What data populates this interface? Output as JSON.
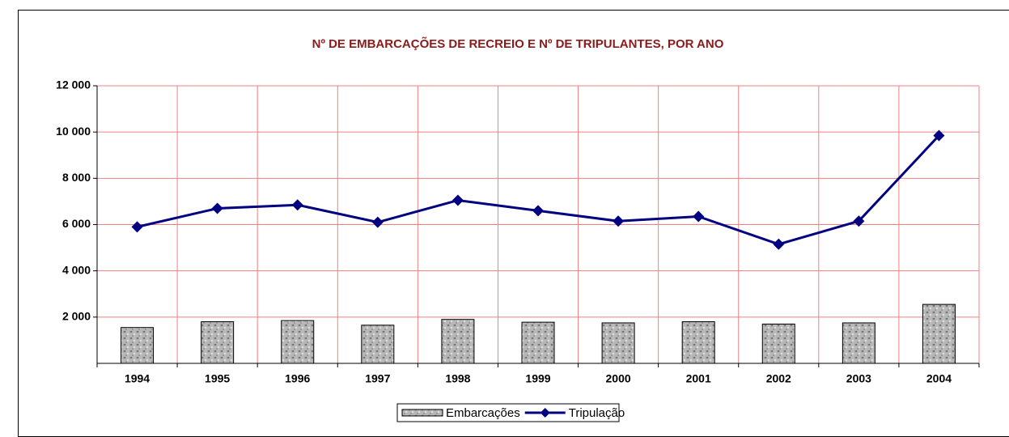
{
  "chart_data": {
    "type": "bar+line",
    "title": "Nº DE EMBARCAÇÕES DE RECREIO E Nº DE TRIPULANTES, POR ANO",
    "categories": [
      "1994",
      "1995",
      "1996",
      "1997",
      "1998",
      "1999",
      "2000",
      "2001",
      "2002",
      "2003",
      "2004"
    ],
    "series": [
      {
        "name": "Embarcações",
        "type": "bar",
        "color": "#a6a6a6",
        "values": [
          1550,
          1800,
          1850,
          1650,
          1900,
          1780,
          1750,
          1800,
          1700,
          1750,
          2550
        ]
      },
      {
        "name": "Tripulação",
        "type": "line",
        "color": "#000080",
        "values": [
          5900,
          6700,
          6850,
          6100,
          7050,
          6600,
          6150,
          6350,
          5150,
          6150,
          9850
        ]
      }
    ],
    "ylim": [
      0,
      12000
    ],
    "yticks": [
      {
        "value": 2000,
        "label": "2 000"
      },
      {
        "value": 4000,
        "label": "4 000"
      },
      {
        "value": 6000,
        "label": "6 000"
      },
      {
        "value": 8000,
        "label": "8 000"
      },
      {
        "value": 10000,
        "label": "10 000"
      },
      {
        "value": 12000,
        "label": "12 000"
      }
    ],
    "grid": true,
    "grid_color": "#f08080",
    "legend": "bottom"
  }
}
